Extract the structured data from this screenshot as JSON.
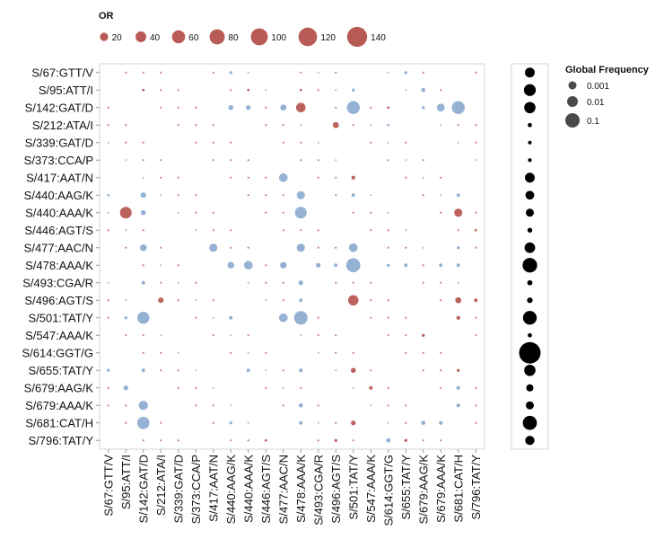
{
  "chart_data": [
    {
      "type": "scatter",
      "subtype": "bubble-matrix",
      "title": "",
      "x_categories": [
        "S/67:GTT/V",
        "S/95:ATT/I",
        "S/142:GAT/D",
        "S/212:ATA/I",
        "S/339:GAT/D",
        "S/373:CCA/P",
        "S/417:AAT/N",
        "S/440:AAG/K",
        "S/440:AAA/K",
        "S/446:AGT/S",
        "S/477:AAC/N",
        "S/478:AAA/K",
        "S/493:CGA/R",
        "S/496:AGT/S",
        "S/501:TAT/Y",
        "S/547:AAA/K",
        "S/614:GGT/G",
        "S/655:TAT/Y",
        "S/679:AAG/K",
        "S/679:AAA/K",
        "S/681:CAT/H",
        "S/796:TAT/Y"
      ],
      "y_categories": [
        "S/67:GTT/V",
        "S/95:ATT/I",
        "S/142:GAT/D",
        "S/212:ATA/I",
        "S/339:GAT/D",
        "S/373:CCA/P",
        "S/417:AAT/N",
        "S/440:AAG/K",
        "S/440:AAA/K",
        "S/446:AGT/S",
        "S/477:AAC/N",
        "S/478:AAA/K",
        "S/493:CGA/R",
        "S/496:AGT/S",
        "S/501:TAT/Y",
        "S/547:AAA/K",
        "S/614:GGT/G",
        "S/655:TAT/Y",
        "S/679:AAG/K",
        "S/679:AAA/K",
        "S/681:CAT/H",
        "S/796:TAT/Y"
      ],
      "size_encoding": "OR",
      "color_encoding": "direction",
      "colors": {
        "blue": "#8fadd1",
        "red": "#b85a55"
      },
      "points": [
        {
          "x": "S/440:AAG/K",
          "y": "S/67:GTT/V",
          "or": 3,
          "color": "blue"
        },
        {
          "x": "S/655:TAT/Y",
          "y": "S/67:GTT/V",
          "or": 3,
          "color": "blue"
        },
        {
          "x": "S/142:GAT/D",
          "y": "S/95:ATT/I",
          "or": 2,
          "color": "red"
        },
        {
          "x": "S/440:AAA/K",
          "y": "S/95:ATT/I",
          "or": 2,
          "color": "red"
        },
        {
          "x": "S/478:AAA/K",
          "y": "S/95:ATT/I",
          "or": 2,
          "color": "red"
        },
        {
          "x": "S/501:TAT/Y",
          "y": "S/95:ATT/I",
          "or": 3,
          "color": "blue"
        },
        {
          "x": "S/679:AAG/K",
          "y": "S/95:ATT/I",
          "or": 6,
          "color": "blue"
        },
        {
          "x": "S/440:AAG/K",
          "y": "S/142:GAT/D",
          "or": 8,
          "color": "blue"
        },
        {
          "x": "S/440:AAA/K",
          "y": "S/142:GAT/D",
          "or": 7,
          "color": "blue"
        },
        {
          "x": "S/477:AAC/N",
          "y": "S/142:GAT/D",
          "or": 12,
          "color": "blue"
        },
        {
          "x": "S/478:AAA/K",
          "y": "S/142:GAT/D",
          "or": 30,
          "color": "red"
        },
        {
          "x": "S/501:TAT/Y",
          "y": "S/142:GAT/D",
          "or": 55,
          "color": "blue"
        },
        {
          "x": "S/614:GGT/G",
          "y": "S/142:GAT/D",
          "or": 2,
          "color": "red"
        },
        {
          "x": "S/679:AAG/K",
          "y": "S/142:GAT/D",
          "or": 3,
          "color": "blue"
        },
        {
          "x": "S/679:AAA/K",
          "y": "S/142:GAT/D",
          "or": 20,
          "color": "blue"
        },
        {
          "x": "S/681:CAT/H",
          "y": "S/142:GAT/D",
          "or": 55,
          "color": "blue"
        },
        {
          "x": "S/496:AGT/S",
          "y": "S/212:ATA/I",
          "or": 12,
          "color": "red"
        },
        {
          "x": "S/614:GGT/G",
          "y": "S/212:ATA/I",
          "or": 2,
          "color": "blue"
        },
        {
          "x": "S/477:AAC/N",
          "y": "S/417:AAT/N",
          "or": 25,
          "color": "blue"
        },
        {
          "x": "S/501:TAT/Y",
          "y": "S/417:AAT/N",
          "or": 5,
          "color": "red"
        },
        {
          "x": "S/67:GTT/V",
          "y": "S/440:AAG/K",
          "or": 2,
          "color": "blue"
        },
        {
          "x": "S/142:GAT/D",
          "y": "S/440:AAG/K",
          "or": 10,
          "color": "blue"
        },
        {
          "x": "S/478:AAA/K",
          "y": "S/440:AAG/K",
          "or": 22,
          "color": "blue"
        },
        {
          "x": "S/501:TAT/Y",
          "y": "S/440:AAG/K",
          "or": 4,
          "color": "blue"
        },
        {
          "x": "S/681:CAT/H",
          "y": "S/440:AAG/K",
          "or": 4,
          "color": "blue"
        },
        {
          "x": "S/95:ATT/I",
          "y": "S/440:AAA/K",
          "or": 45,
          "color": "red"
        },
        {
          "x": "S/142:GAT/D",
          "y": "S/440:AAA/K",
          "or": 8,
          "color": "blue"
        },
        {
          "x": "S/478:AAA/K",
          "y": "S/440:AAA/K",
          "or": 45,
          "color": "blue"
        },
        {
          "x": "S/681:CAT/H",
          "y": "S/440:AAA/K",
          "or": 22,
          "color": "red"
        },
        {
          "x": "S/796:TAT/Y",
          "y": "S/446:AGT/S",
          "or": 2,
          "color": "red"
        },
        {
          "x": "S/142:GAT/D",
          "y": "S/477:AAC/N",
          "or": 15,
          "color": "blue"
        },
        {
          "x": "S/417:AAT/N",
          "y": "S/477:AAC/N",
          "or": 22,
          "color": "blue"
        },
        {
          "x": "S/478:AAA/K",
          "y": "S/477:AAC/N",
          "or": 22,
          "color": "blue"
        },
        {
          "x": "S/501:TAT/Y",
          "y": "S/477:AAC/N",
          "or": 25,
          "color": "blue"
        },
        {
          "x": "S/681:CAT/H",
          "y": "S/477:AAC/N",
          "or": 3,
          "color": "blue"
        },
        {
          "x": "S/440:AAG/K",
          "y": "S/478:AAA/K",
          "or": 14,
          "color": "blue"
        },
        {
          "x": "S/440:AAA/K",
          "y": "S/478:AAA/K",
          "or": 25,
          "color": "blue"
        },
        {
          "x": "S/477:AAC/N",
          "y": "S/478:AAA/K",
          "or": 14,
          "color": "blue"
        },
        {
          "x": "S/493:CGA/R",
          "y": "S/478:AAA/K",
          "or": 7,
          "color": "blue"
        },
        {
          "x": "S/496:AGT/S",
          "y": "S/478:AAA/K",
          "or": 4,
          "color": "blue"
        },
        {
          "x": "S/501:TAT/Y",
          "y": "S/478:AAA/K",
          "or": 65,
          "color": "blue"
        },
        {
          "x": "S/614:GGT/G",
          "y": "S/478:AAA/K",
          "or": 3,
          "color": "blue"
        },
        {
          "x": "S/655:TAT/Y",
          "y": "S/478:AAA/K",
          "or": 4,
          "color": "blue"
        },
        {
          "x": "S/679:AAA/K",
          "y": "S/478:AAA/K",
          "or": 4,
          "color": "blue"
        },
        {
          "x": "S/681:CAT/H",
          "y": "S/478:AAA/K",
          "or": 4,
          "color": "blue"
        },
        {
          "x": "S/142:GAT/D",
          "y": "S/493:CGA/R",
          "or": 4,
          "color": "blue"
        },
        {
          "x": "S/478:AAA/K",
          "y": "S/493:CGA/R",
          "or": 7,
          "color": "blue"
        },
        {
          "x": "S/212:ATA/I",
          "y": "S/496:AGT/S",
          "or": 10,
          "color": "red"
        },
        {
          "x": "S/478:AAA/K",
          "y": "S/496:AGT/S",
          "or": 4,
          "color": "blue"
        },
        {
          "x": "S/501:TAT/Y",
          "y": "S/496:AGT/S",
          "or": 35,
          "color": "red"
        },
        {
          "x": "S/681:CAT/H",
          "y": "S/496:AGT/S",
          "or": 12,
          "color": "red"
        },
        {
          "x": "S/796:TAT/Y",
          "y": "S/496:AGT/S",
          "or": 4,
          "color": "red"
        },
        {
          "x": "S/95:ATT/I",
          "y": "S/501:TAT/Y",
          "or": 3,
          "color": "blue"
        },
        {
          "x": "S/142:GAT/D",
          "y": "S/501:TAT/Y",
          "or": 48,
          "color": "blue"
        },
        {
          "x": "S/440:AAG/K",
          "y": "S/501:TAT/Y",
          "or": 4,
          "color": "blue"
        },
        {
          "x": "S/477:AAC/N",
          "y": "S/501:TAT/Y",
          "or": 25,
          "color": "blue"
        },
        {
          "x": "S/478:AAA/K",
          "y": "S/501:TAT/Y",
          "or": 60,
          "color": "blue"
        },
        {
          "x": "S/681:CAT/H",
          "y": "S/501:TAT/Y",
          "or": 5,
          "color": "red"
        },
        {
          "x": "S/679:AAG/K",
          "y": "S/547:AAA/K",
          "or": 3,
          "color": "red"
        },
        {
          "x": "S/67:GTT/V",
          "y": "S/655:TAT/Y",
          "or": 3,
          "color": "blue"
        },
        {
          "x": "S/142:GAT/D",
          "y": "S/655:TAT/Y",
          "or": 4,
          "color": "blue"
        },
        {
          "x": "S/440:AAA/K",
          "y": "S/655:TAT/Y",
          "or": 4,
          "color": "blue"
        },
        {
          "x": "S/478:AAA/K",
          "y": "S/655:TAT/Y",
          "or": 5,
          "color": "blue"
        },
        {
          "x": "S/501:TAT/Y",
          "y": "S/655:TAT/Y",
          "or": 8,
          "color": "red"
        },
        {
          "x": "S/681:CAT/H",
          "y": "S/655:TAT/Y",
          "or": 3,
          "color": "red"
        },
        {
          "x": "S/95:ATT/I",
          "y": "S/679:AAG/K",
          "or": 7,
          "color": "blue"
        },
        {
          "x": "S/547:AAA/K",
          "y": "S/679:AAG/K",
          "or": 4,
          "color": "red"
        },
        {
          "x": "S/681:CAT/H",
          "y": "S/679:AAG/K",
          "or": 5,
          "color": "blue"
        },
        {
          "x": "S/142:GAT/D",
          "y": "S/679:AAA/K",
          "or": 28,
          "color": "blue"
        },
        {
          "x": "S/478:AAA/K",
          "y": "S/679:AAA/K",
          "or": 6,
          "color": "blue"
        },
        {
          "x": "S/681:CAT/H",
          "y": "S/679:AAA/K",
          "or": 5,
          "color": "blue"
        },
        {
          "x": "S/142:GAT/D",
          "y": "S/681:CAT/H",
          "or": 50,
          "color": "blue"
        },
        {
          "x": "S/440:AAG/K",
          "y": "S/681:CAT/H",
          "or": 3,
          "color": "blue"
        },
        {
          "x": "S/478:AAA/K",
          "y": "S/681:CAT/H",
          "or": 4,
          "color": "blue"
        },
        {
          "x": "S/501:TAT/Y",
          "y": "S/681:CAT/H",
          "or": 7,
          "color": "red"
        },
        {
          "x": "S/679:AAG/K",
          "y": "S/681:CAT/H",
          "or": 6,
          "color": "blue"
        },
        {
          "x": "S/679:AAA/K",
          "y": "S/681:CAT/H",
          "or": 5,
          "color": "blue"
        },
        {
          "x": "S/446:AGT/S",
          "y": "S/796:TAT/Y",
          "or": 2,
          "color": "red"
        },
        {
          "x": "S/496:AGT/S",
          "y": "S/796:TAT/Y",
          "or": 3,
          "color": "red"
        },
        {
          "x": "S/614:GGT/G",
          "y": "S/796:TAT/Y",
          "or": 6,
          "color": "blue"
        },
        {
          "x": "S/655:TAT/Y",
          "y": "S/796:TAT/Y",
          "or": 3,
          "color": "red"
        }
      ],
      "legend_or": {
        "title": "OR",
        "entries": [
          20,
          40,
          60,
          80,
          100,
          120,
          140
        ],
        "placement": "top-left"
      }
    },
    {
      "type": "scatter",
      "subtype": "bubble-column",
      "series_color": "#000000",
      "y_categories": [
        "S/67:GTT/V",
        "S/95:ATT/I",
        "S/142:GAT/D",
        "S/212:ATA/I",
        "S/339:GAT/D",
        "S/373:CCA/P",
        "S/417:AAT/N",
        "S/440:AAG/K",
        "S/440:AAA/K",
        "S/446:AGT/S",
        "S/477:AAC/N",
        "S/478:AAA/K",
        "S/493:CGA/R",
        "S/496:AGT/S",
        "S/501:TAT/Y",
        "S/547:AAA/K",
        "S/614:GGT/G",
        "S/655:TAT/Y",
        "S/679:AAG/K",
        "S/679:AAA/K",
        "S/681:CAT/H",
        "S/796:TAT/Y"
      ],
      "global_frequency": [
        0.06,
        0.12,
        0.1,
        0.003,
        0.001,
        0.002,
        0.06,
        0.04,
        0.03,
        0.005,
        0.08,
        0.25,
        0.006,
        0.008,
        0.2,
        0.003,
        0.99,
        0.1,
        0.02,
        0.03,
        0.22,
        0.05
      ],
      "legend_freq": {
        "title": "Global Frequency",
        "entries": [
          {
            "label": "0.001",
            "value": 0.001
          },
          {
            "label": "0.01",
            "value": 0.01
          },
          {
            "label": "0.1",
            "value": 0.1
          }
        ],
        "placement": "top-right"
      }
    }
  ]
}
